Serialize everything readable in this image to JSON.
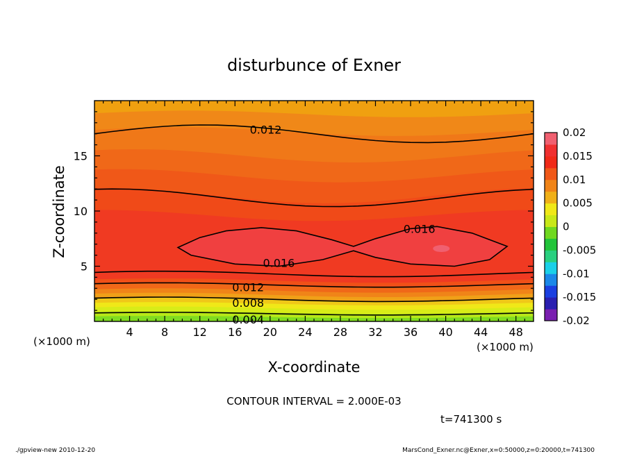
{
  "chart_data": {
    "type": "heatmap",
    "title": "disturbunce of Exner",
    "xlabel": "X-coordinate",
    "ylabel": "Z-coordinate",
    "x_units_left": "(×1000 m)",
    "x_units_right": "(×1000 m)",
    "xlim": [
      0,
      50
    ],
    "ylim": [
      0,
      20
    ],
    "x_ticks": [
      4,
      8,
      12,
      16,
      20,
      24,
      28,
      32,
      36,
      40,
      44,
      48
    ],
    "y_ticks": [
      5,
      10,
      15
    ],
    "colorbar": {
      "ticks": [
        "0.02",
        "0.015",
        "0.01",
        "0.005",
        "0",
        "-0.005",
        "-0.01",
        "-0.015",
        "-0.02"
      ],
      "range": [
        -0.02,
        0.02
      ],
      "colors": [
        "#7a1fb0",
        "#2a1fb0",
        "#1a3fe0",
        "#1a88e8",
        "#1ad0e8",
        "#2ad080",
        "#22c43a",
        "#70d820",
        "#c8e818",
        "#f0e818",
        "#f0b018",
        "#f08418",
        "#f05818",
        "#f02a18",
        "#f03030",
        "#f06070"
      ]
    },
    "contour_labels": [
      {
        "text": "0.012",
        "x": 19.5,
        "z": 17.4
      },
      {
        "text": "0.016",
        "x": 37.0,
        "z": 8.4
      },
      {
        "text": "0.016",
        "x": 21.0,
        "z": 5.3
      },
      {
        "text": "0.012",
        "x": 17.5,
        "z": 3.1
      },
      {
        "text": "0.008",
        "x": 17.5,
        "z": 1.7
      },
      {
        "text": "0.004",
        "x": 17.5,
        "z": 0.2
      }
    ],
    "contour_interval": "CONTOUR INTERVAL = 2.000E-03",
    "time_label": "t=741300 s"
  },
  "footer": {
    "left": "./gpview-new  2010-12-20",
    "right": "MarsCond_Exner.nc@Exner,x=0:50000,z=0:20000,t=741300"
  }
}
